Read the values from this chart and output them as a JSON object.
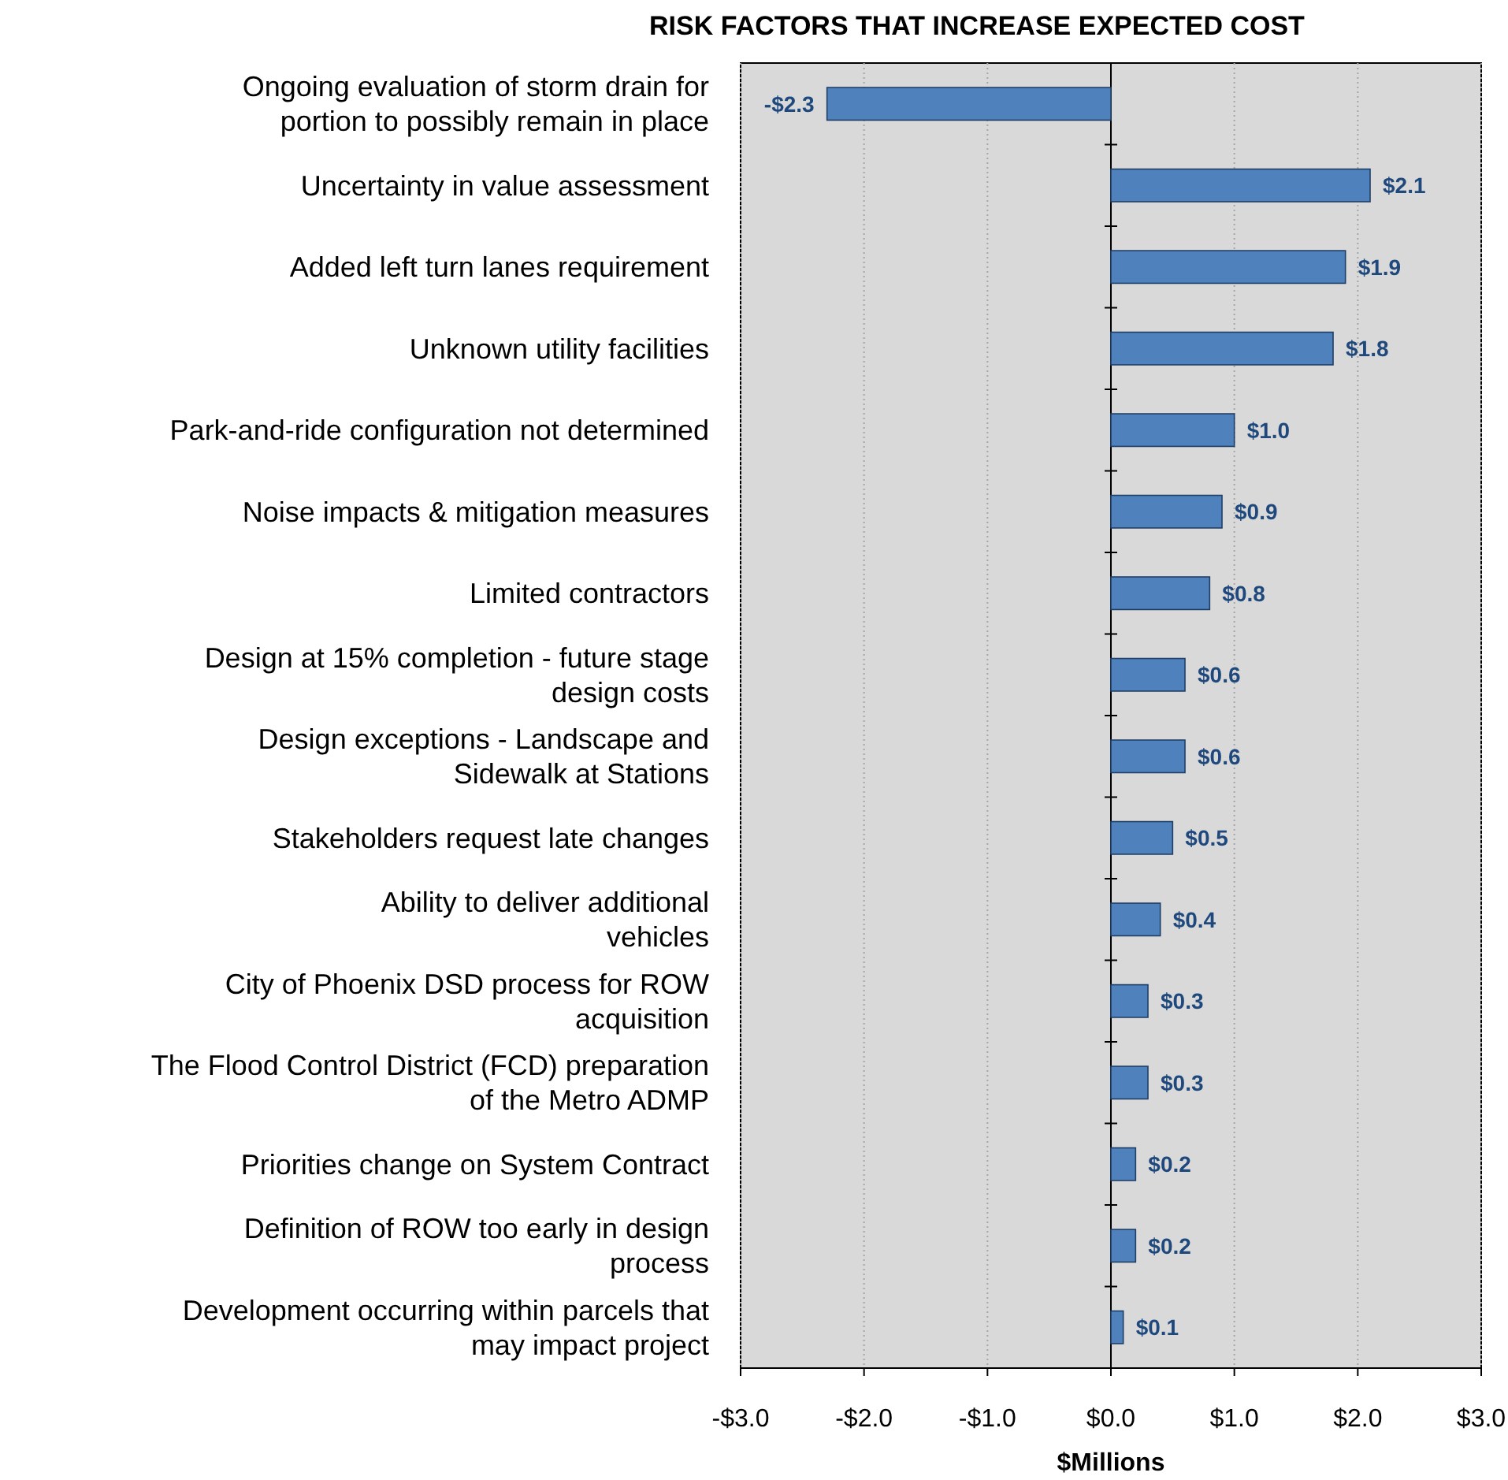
{
  "chart_data": {
    "type": "bar",
    "orientation": "horizontal",
    "title": "RISK FACTORS THAT INCREASE EXPECTED COST",
    "xlabel": "$Millions",
    "categories": [
      "Ongoing evaluation of storm drain for\nportion to possibly remain in place",
      "Uncertainty in value assessment",
      "Added left turn lanes requirement",
      "Unknown utility facilities",
      "Park-and-ride configuration not determined",
      "Noise impacts & mitigation measures",
      "Limited contractors",
      "Design at 15% completion - future stage\ndesign costs",
      "Design exceptions - Landscape and\nSidewalk at Stations",
      "Stakeholders request late changes",
      "Ability to deliver additional\nvehicles",
      "City of Phoenix DSD process for ROW\nacquisition",
      "The Flood Control District (FCD) preparation\nof the Metro ADMP",
      "Priorities change on System Contract",
      "Definition of ROW too early in design\nprocess",
      "Development occurring within parcels that\nmay impact project"
    ],
    "values": [
      -2.3,
      2.1,
      1.9,
      1.8,
      1.0,
      0.9,
      0.8,
      0.6,
      0.6,
      0.5,
      0.4,
      0.3,
      0.3,
      0.2,
      0.2,
      0.1
    ],
    "value_labels": [
      "-$2.3",
      "$2.1",
      "$1.9",
      "$1.8",
      "$1.0",
      "$0.9",
      "$0.8",
      "$0.6",
      "$0.6",
      "$0.5",
      "$0.4",
      "$0.3",
      "$0.3",
      "$0.2",
      "$0.2",
      "$0.1"
    ],
    "color": "#4f81bd",
    "xlim": [
      -3,
      3
    ],
    "xticks": [
      {
        "value": -3,
        "label": "-$3.0"
      },
      {
        "value": -2,
        "label": "-$2.0"
      },
      {
        "value": -1,
        "label": "-$1.0"
      },
      {
        "value": 0,
        "label": "$0.0"
      },
      {
        "value": 1,
        "label": "$1.0"
      },
      {
        "value": 2,
        "label": "$2.0"
      },
      {
        "value": 3,
        "label": "$3.0"
      }
    ],
    "grid": "x"
  }
}
